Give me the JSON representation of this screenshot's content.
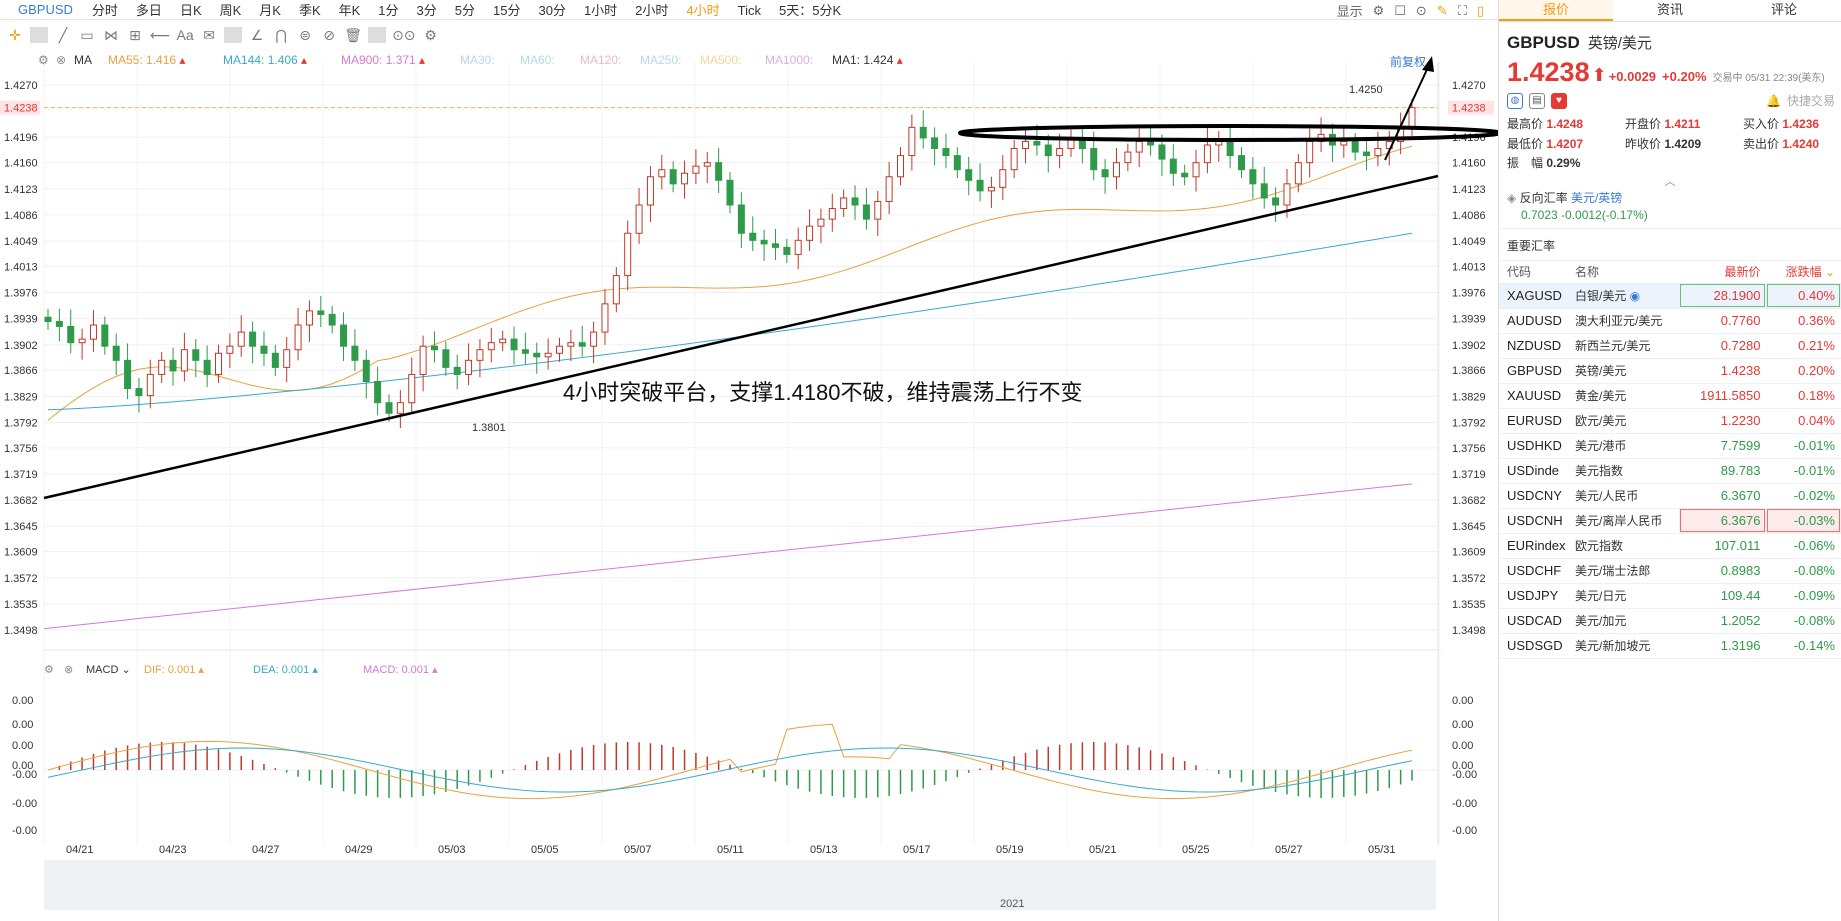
{
  "toolbar": {
    "symbol": "GBPUSD",
    "timeframes": [
      "分时",
      "多日",
      "日K",
      "周K",
      "月K",
      "季K",
      "年K",
      "1分",
      "3分",
      "5分",
      "15分",
      "30分",
      "1小时",
      "2小时",
      "4小时",
      "Tick",
      "5天：5分K"
    ],
    "active_timeframe": "4小时",
    "display_label": "显示"
  },
  "drawtools": [
    "✛",
    "╱",
    "▭",
    "⋈",
    "⊞",
    "⟵",
    "Aa",
    "✉",
    "∠",
    "⋂",
    "⊜",
    "⊘",
    "🗑",
    "⊙⊙",
    "⚙"
  ],
  "ma_legend": {
    "label": "MA",
    "items": [
      {
        "text": "MA55: 1.416",
        "color": "#e8a040"
      },
      {
        "text": "MA144: 1.406",
        "color": "#3aa9c9"
      },
      {
        "text": "MA900: 1.371",
        "color": "#d47ad4"
      },
      {
        "text": "MA30:",
        "color": "#b7d6ea"
      },
      {
        "text": "MA60:",
        "color": "#b7d6ea"
      },
      {
        "text": "MA120:",
        "color": "#f0b7c9"
      },
      {
        "text": "MA250:",
        "color": "#b7d6ea"
      },
      {
        "text": "MA500:",
        "color": "#f5d59a"
      },
      {
        "text": "MA1000:",
        "color": "#d6b0e0"
      },
      {
        "text": "MA1: 1.424",
        "color": "#333333"
      }
    ],
    "restore": "前复权"
  },
  "price_axis": [
    "1.4270",
    "1.4238",
    "1.4196",
    "1.4160",
    "1.4123",
    "1.4086",
    "1.4049",
    "1.4013",
    "1.3976",
    "1.3939",
    "1.3902",
    "1.3866",
    "1.3829",
    "1.3792",
    "1.3756",
    "1.3719",
    "1.3682",
    "1.3645",
    "1.3609",
    "1.3572",
    "1.3535",
    "1.3498"
  ],
  "current_price_tag": "1.4238",
  "annotations": {
    "high_label": "1.4250",
    "low_label": "1.3801",
    "analysis": "4小时突破平台，支撑1.4180不破，维持震荡上行不变"
  },
  "macd_legend": {
    "label": "MACD",
    "items": [
      {
        "text": "DIF: 0.001",
        "color": "#e8a040"
      },
      {
        "text": "DEA: 0.001",
        "color": "#3aa9c9"
      },
      {
        "text": "MACD: 0.001",
        "color": "#d47ad4"
      }
    ]
  },
  "macd_axis": [
    "0.00",
    "0.00",
    "0.00",
    "0.00",
    "-0.00",
    "-0.00",
    "-0.00"
  ],
  "date_axis": [
    "04/21",
    "04/23",
    "04/27",
    "04/29",
    "05/03",
    "05/05",
    "05/07",
    "05/11",
    "05/13",
    "05/17",
    "05/19",
    "05/21",
    "05/25",
    "05/27",
    "05/31"
  ],
  "navigator_year": "2021",
  "panel": {
    "tabs": [
      "报价",
      "资讯",
      "评论"
    ],
    "symbol": "GBPUSD",
    "name_cn": "英镑/美元",
    "price": "1.4238",
    "change": "+0.0029",
    "change_pct": "+0.20%",
    "status": "交易中 05/31 22:39(美东)",
    "quick_trade": "快捷交易",
    "stats": [
      {
        "label": "最高价",
        "value": "1.4248",
        "color": "red"
      },
      {
        "label": "开盘价",
        "value": "1.4211",
        "color": "red"
      },
      {
        "label": "买入价",
        "value": "1.4236",
        "color": "red"
      },
      {
        "label": "最低价",
        "value": "1.4207",
        "color": "red"
      },
      {
        "label": "昨收价",
        "value": "1.4209",
        "color": "plain"
      },
      {
        "label": "卖出价",
        "value": "1.4240",
        "color": "red"
      }
    ],
    "amplitude_label": "振　幅",
    "amplitude": "0.29%",
    "inverse_label": "反向汇率",
    "inverse_pair": "美元/英镑",
    "inverse_value": "0.7023",
    "inverse_change": "-0.0012(-0.17%)",
    "section_title": "重要汇率",
    "columns": [
      "代码",
      "名称",
      "最新价",
      "涨跌幅"
    ],
    "rows": [
      {
        "code": "XAGUSD",
        "name": "白银/美元",
        "price": "28.1900",
        "pct": "0.40%",
        "dir": "up",
        "box": "g",
        "sel": true
      },
      {
        "code": "AUDUSD",
        "name": "澳大利亚元/美元",
        "price": "0.7760",
        "pct": "0.36%",
        "dir": "up"
      },
      {
        "code": "NZDUSD",
        "name": "新西兰元/美元",
        "price": "0.7280",
        "pct": "0.21%",
        "dir": "up"
      },
      {
        "code": "GBPUSD",
        "name": "英镑/美元",
        "price": "1.4238",
        "pct": "0.20%",
        "dir": "up"
      },
      {
        "code": "XAUUSD",
        "name": "黄金/美元",
        "price": "1911.5850",
        "pct": "0.18%",
        "dir": "up"
      },
      {
        "code": "EURUSD",
        "name": "欧元/美元",
        "price": "1.2230",
        "pct": "0.04%",
        "dir": "up"
      },
      {
        "code": "USDHKD",
        "name": "美元/港币",
        "price": "7.7599",
        "pct": "-0.01%",
        "dir": "down"
      },
      {
        "code": "USDinde",
        "name": "美元指数",
        "price": "89.783",
        "pct": "-0.01%",
        "dir": "down"
      },
      {
        "code": "USDCNY",
        "name": "美元/人民币",
        "price": "6.3670",
        "pct": "-0.02%",
        "dir": "down"
      },
      {
        "code": "USDCNH",
        "name": "美元/离岸人民币",
        "price": "6.3676",
        "pct": "-0.03%",
        "dir": "down",
        "box": "r"
      },
      {
        "code": "EURindex",
        "name": "欧元指数",
        "price": "107.011",
        "pct": "-0.06%",
        "dir": "down"
      },
      {
        "code": "USDCHF",
        "name": "美元/瑞士法郎",
        "price": "0.8983",
        "pct": "-0.08%",
        "dir": "down"
      },
      {
        "code": "USDJPY",
        "name": "美元/日元",
        "price": "109.44",
        "pct": "-0.09%",
        "dir": "down"
      },
      {
        "code": "USDCAD",
        "name": "美元/加元",
        "price": "1.2052",
        "pct": "-0.08%",
        "dir": "down"
      },
      {
        "code": "USDSGD",
        "name": "美元/新加坡元",
        "price": "1.3196",
        "pct": "-0.14%",
        "dir": "down"
      }
    ]
  },
  "colors": {
    "up": "#e53935",
    "down": "#2e9a4a",
    "accent": "#f39c12",
    "link": "#3a7bd5"
  },
  "candles": [
    1.3935,
    1.3928,
    1.3905,
    1.391,
    1.393,
    1.39,
    1.388,
    1.384,
    1.383,
    1.386,
    1.388,
    1.3865,
    1.3895,
    1.388,
    1.386,
    1.389,
    1.39,
    1.392,
    1.39,
    1.389,
    1.387,
    1.3895,
    1.393,
    1.395,
    1.3945,
    1.393,
    1.39,
    1.388,
    1.385,
    1.382,
    1.3805,
    1.382,
    1.386,
    1.39,
    1.3895,
    1.387,
    1.386,
    1.388,
    1.3895,
    1.3905,
    1.391,
    1.3895,
    1.389,
    1.3885,
    1.389,
    1.39,
    1.3905,
    1.39,
    1.392,
    1.396,
    1.4,
    1.406,
    1.41,
    1.414,
    1.415,
    1.413,
    1.4145,
    1.4155,
    1.416,
    1.4135,
    1.41,
    1.406,
    1.405,
    1.4045,
    1.404,
    1.403,
    1.405,
    1.407,
    1.408,
    1.4095,
    1.411,
    1.41,
    1.408,
    1.4105,
    1.414,
    1.417,
    1.421,
    1.4195,
    1.418,
    1.417,
    1.415,
    1.4135,
    1.412,
    1.4125,
    1.415,
    1.418,
    1.419,
    1.4185,
    1.417,
    1.418,
    1.4195,
    1.418,
    1.415,
    1.414,
    1.416,
    1.4175,
    1.419,
    1.4185,
    1.4165,
    1.4145,
    1.414,
    1.416,
    1.4185,
    1.419,
    1.417,
    1.415,
    1.413,
    1.411,
    1.41,
    1.413,
    1.416,
    1.419,
    1.42,
    1.4185,
    1.419,
    1.4175,
    1.417,
    1.418,
    1.419,
    1.421,
    1.4238
  ]
}
